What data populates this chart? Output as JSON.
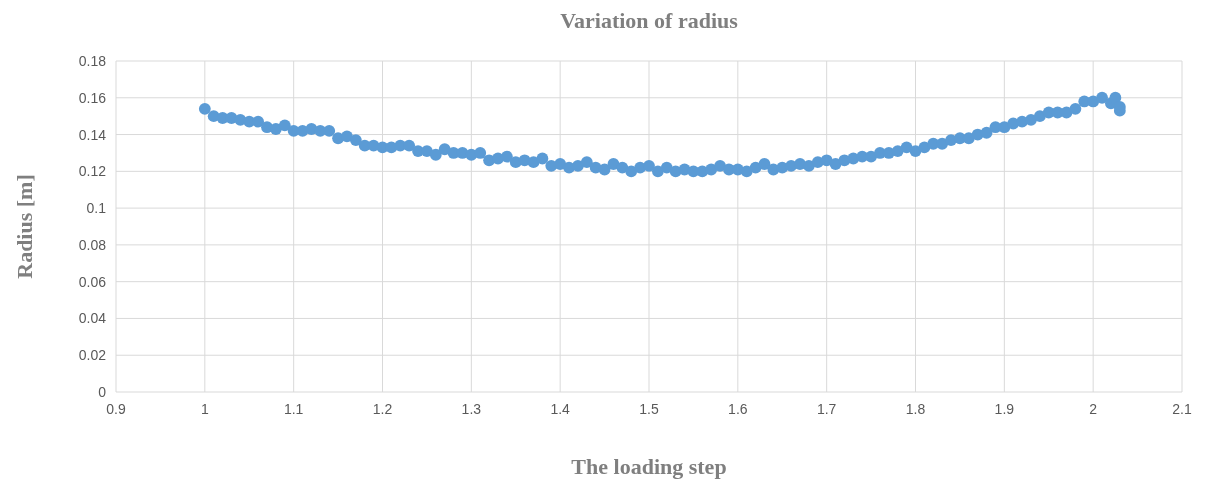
{
  "chart_data": {
    "type": "scatter",
    "title": "Variation of radius",
    "xlabel": "The loading step",
    "ylabel": "Radius [m]",
    "xlim": [
      0.9,
      2.1
    ],
    "xticks": [
      0.9,
      1,
      1.1,
      1.2,
      1.3,
      1.4,
      1.5,
      1.6,
      1.7,
      1.8,
      1.9,
      2,
      2.1
    ],
    "ylim": [
      0,
      0.18
    ],
    "yticks": [
      0,
      0.02,
      0.04,
      0.06,
      0.08,
      0.1,
      0.12,
      0.14,
      0.16,
      0.18
    ],
    "grid": true,
    "marker": "circle",
    "series": [
      {
        "color": "#5b9bd5",
        "x": [
          1.0,
          1.01,
          1.02,
          1.03,
          1.04,
          1.05,
          1.06,
          1.07,
          1.08,
          1.09,
          1.1,
          1.11,
          1.12,
          1.13,
          1.14,
          1.15,
          1.16,
          1.17,
          1.18,
          1.19,
          1.2,
          1.21,
          1.22,
          1.23,
          1.24,
          1.25,
          1.26,
          1.27,
          1.28,
          1.29,
          1.3,
          1.31,
          1.32,
          1.33,
          1.34,
          1.35,
          1.36,
          1.37,
          1.38,
          1.39,
          1.4,
          1.41,
          1.42,
          1.43,
          1.44,
          1.45,
          1.46,
          1.47,
          1.48,
          1.49,
          1.5,
          1.51,
          1.52,
          1.53,
          1.54,
          1.55,
          1.56,
          1.57,
          1.58,
          1.59,
          1.6,
          1.61,
          1.62,
          1.63,
          1.64,
          1.65,
          1.66,
          1.67,
          1.68,
          1.69,
          1.7,
          1.71,
          1.72,
          1.73,
          1.74,
          1.75,
          1.76,
          1.77,
          1.78,
          1.79,
          1.8,
          1.81,
          1.82,
          1.83,
          1.84,
          1.85,
          1.86,
          1.87,
          1.88,
          1.89,
          1.9,
          1.91,
          1.92,
          1.93,
          1.94,
          1.95,
          1.96,
          1.97,
          1.98,
          1.99,
          2.0,
          2.01,
          2.02,
          2.025,
          2.03,
          2.03
        ],
        "values": [
          0.154,
          0.15,
          0.149,
          0.149,
          0.148,
          0.147,
          0.147,
          0.144,
          0.143,
          0.145,
          0.142,
          0.142,
          0.143,
          0.142,
          0.142,
          0.138,
          0.139,
          0.137,
          0.134,
          0.134,
          0.133,
          0.133,
          0.134,
          0.134,
          0.131,
          0.131,
          0.129,
          0.132,
          0.13,
          0.13,
          0.129,
          0.13,
          0.126,
          0.127,
          0.128,
          0.125,
          0.126,
          0.125,
          0.127,
          0.123,
          0.124,
          0.122,
          0.123,
          0.125,
          0.122,
          0.121,
          0.124,
          0.122,
          0.12,
          0.122,
          0.123,
          0.12,
          0.122,
          0.12,
          0.121,
          0.12,
          0.12,
          0.121,
          0.123,
          0.121,
          0.121,
          0.12,
          0.122,
          0.124,
          0.121,
          0.122,
          0.123,
          0.124,
          0.123,
          0.125,
          0.126,
          0.124,
          0.126,
          0.127,
          0.128,
          0.128,
          0.13,
          0.13,
          0.131,
          0.133,
          0.131,
          0.133,
          0.135,
          0.135,
          0.137,
          0.138,
          0.138,
          0.14,
          0.141,
          0.144,
          0.144,
          0.146,
          0.147,
          0.148,
          0.15,
          0.152,
          0.152,
          0.152,
          0.154,
          0.158,
          0.158,
          0.16,
          0.157,
          0.16,
          0.153,
          0.155
        ]
      }
    ]
  }
}
